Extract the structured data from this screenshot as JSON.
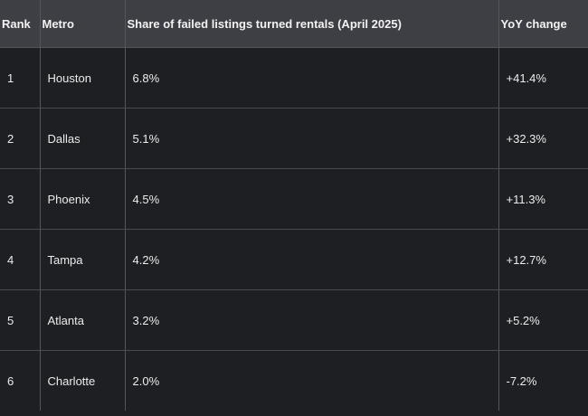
{
  "table": {
    "columns": [
      "Rank",
      "Metro",
      "Share of failed listings turned rentals (April 2025)",
      "YoY change"
    ],
    "rows": [
      [
        "1",
        "Houston",
        "6.8%",
        "+41.4%"
      ],
      [
        "2",
        "Dallas",
        "5.1%",
        "+32.3%"
      ],
      [
        "3",
        "Phoenix",
        "4.5%",
        "+11.3%"
      ],
      [
        "4",
        "Tampa",
        "4.2%",
        "+12.7%"
      ],
      [
        "5",
        "Atlanta",
        "3.2%",
        "+5.2%"
      ],
      [
        "6",
        "Charlotte",
        "2.0%",
        "-7.2%"
      ]
    ]
  }
}
